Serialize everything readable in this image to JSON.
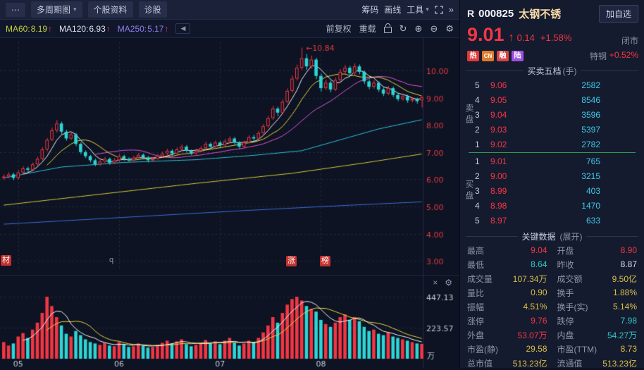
{
  "toolbar_top": {
    "more_icon": "⋯",
    "multi_period": "多周期图",
    "stock_info": "个股资料",
    "diagnose": "诊股",
    "chips": "筹码",
    "draw_line": "画线",
    "tools": "工具",
    "dropdown_icon": "▾",
    "collapse_icon": "»"
  },
  "toolbar_ma": {
    "ma60": {
      "label": "MA60:",
      "value": "8.19",
      "arrow": "↑"
    },
    "ma120": {
      "label": "MA120:",
      "value": "6.93",
      "arrow": "↑"
    },
    "ma250": {
      "label": "MA250:",
      "value": "5.17",
      "arrow": "↑"
    },
    "back_icon": "◀",
    "adjust_mode": "前复权",
    "reload": "重载",
    "refresh_icon": "↻",
    "zoom_in_icon": "⊕",
    "zoom_out_icon": "⊖",
    "gear_icon": "⚙"
  },
  "chart_markers": {
    "left_badge": "材",
    "gray_tag": "q",
    "rise_badge": "涨",
    "rank_badge": "榜"
  },
  "volume_pane": {
    "close_icon": "×",
    "gear_icon": "⚙"
  },
  "quote": {
    "flag": "R",
    "code": "000825",
    "name": "太钢不锈",
    "add_watchlist": "加自选",
    "price": "9.01",
    "arrow": "↑",
    "change": "0.14",
    "change_pct": "+1.58%",
    "market_status": "闭市",
    "badges": [
      {
        "text": "热",
        "style": "background:#e03a3a"
      },
      {
        "text": "CN",
        "style": "background:#e07b2a"
      },
      {
        "text": "融",
        "style": "background:#d84343"
      },
      {
        "text": "陆",
        "style": "background:#9e52e0"
      }
    ],
    "sector": {
      "label": "特钢",
      "value": "+0.52%"
    }
  },
  "order_book": {
    "title": "买卖五档",
    "unit": "(手)",
    "sell_label": "卖盘",
    "buy_label": "买盘",
    "sell": [
      {
        "level": "5",
        "price": "9.06",
        "volume": "2582"
      },
      {
        "level": "4",
        "price": "9.05",
        "volume": "8546"
      },
      {
        "level": "3",
        "price": "9.04",
        "volume": "3596"
      },
      {
        "level": "2",
        "price": "9.03",
        "volume": "5397"
      },
      {
        "level": "1",
        "price": "9.02",
        "volume": "2782"
      }
    ],
    "buy": [
      {
        "level": "1",
        "price": "9.01",
        "volume": "765"
      },
      {
        "level": "2",
        "price": "9.00",
        "volume": "3215"
      },
      {
        "level": "3",
        "price": "8.99",
        "volume": "403"
      },
      {
        "level": "4",
        "price": "8.98",
        "volume": "1470"
      },
      {
        "level": "5",
        "price": "8.97",
        "volume": "633"
      }
    ]
  },
  "key_data": {
    "title": "关键数据",
    "expand": "(展开)",
    "rows": [
      [
        {
          "label": "最高",
          "value": "9.04",
          "color": "up"
        },
        {
          "label": "开盘",
          "value": "8.90",
          "color": "up"
        }
      ],
      [
        {
          "label": "最低",
          "value": "8.64",
          "color": "down"
        },
        {
          "label": "昨收",
          "value": "8.87",
          "color": "flat"
        }
      ],
      [
        {
          "label": "成交量",
          "value": "107.34万",
          "color": "neutral"
        },
        {
          "label": "成交额",
          "value": "9.50亿",
          "color": "neutral"
        }
      ],
      [
        {
          "label": "量比",
          "value": "0.90",
          "color": "neutral"
        },
        {
          "label": "换手",
          "value": "1.88%",
          "color": "neutral"
        }
      ],
      [
        {
          "label": "振幅",
          "value": "4.51%",
          "color": "neutral"
        },
        {
          "label": "换手(实)",
          "value": "5.14%",
          "color": "neutral"
        }
      ],
      [
        {
          "label": "涨停",
          "value": "9.76",
          "color": "up"
        },
        {
          "label": "跌停",
          "value": "7.98",
          "color": "down"
        }
      ],
      [
        {
          "label": "外盘",
          "value": "53.07万",
          "color": "up"
        },
        {
          "label": "内盘",
          "value": "54.27万",
          "color": "down"
        }
      ],
      [
        {
          "label": "市盈(静)",
          "value": "29.58",
          "color": "neutral"
        },
        {
          "label": "市盈(TTM)",
          "value": "8.73",
          "color": "neutral"
        }
      ],
      [
        {
          "label": "总市值",
          "value": "513.23亿",
          "color": "neutral"
        },
        {
          "label": "流通值",
          "value": "513.23亿",
          "color": "neutral"
        }
      ]
    ]
  },
  "chart_data": {
    "type": "candlestick",
    "y_ticks": [
      10,
      9,
      8,
      7,
      6,
      5,
      4,
      3
    ],
    "x_labels": [
      "05",
      "06",
      "07",
      "08"
    ],
    "month_indices": [
      3,
      24,
      45,
      66
    ],
    "annotation": {
      "text": "←10.84",
      "index": 62,
      "price": 10.84
    },
    "volume_y_ticks": [
      "447.13",
      "223.57"
    ],
    "volume_unit": "万",
    "colors": {
      "up": "#f13644",
      "down": "#2ed5d5",
      "ma5": "#f5f5f5",
      "ma10": "#e9d63d",
      "ma20": "#e255d5",
      "grid": "#1f2842",
      "axis_text": "#e23a42",
      "text": "#c4cbdc"
    },
    "long_ma": {
      "ma60": {
        "color": "#30c2dd",
        "points": [
          [
            0,
            6.05
          ],
          [
            12,
            6.45
          ],
          [
            25,
            6.62
          ],
          [
            40,
            6.72
          ],
          [
            52,
            6.88
          ],
          [
            62,
            7.05
          ],
          [
            70,
            7.45
          ],
          [
            78,
            7.85
          ],
          [
            87,
            8.19
          ]
        ]
      },
      "ma120": {
        "color": "#d9cc3b",
        "points": [
          [
            0,
            5.05
          ],
          [
            20,
            5.45
          ],
          [
            40,
            5.85
          ],
          [
            60,
            6.22
          ],
          [
            75,
            6.6
          ],
          [
            87,
            6.93
          ]
        ]
      },
      "ma250": {
        "color": "#3e6fe0",
        "points": [
          [
            0,
            4.35
          ],
          [
            25,
            4.6
          ],
          [
            50,
            4.85
          ],
          [
            70,
            5.03
          ],
          [
            87,
            5.17
          ]
        ]
      }
    },
    "candles": [
      [
        6.05,
        6.18,
        5.98,
        6.1
      ],
      [
        6.1,
        6.26,
        6.04,
        6.18
      ],
      [
        6.18,
        6.24,
        5.97,
        6.05
      ],
      [
        6.05,
        6.33,
        5.99,
        6.25
      ],
      [
        6.25,
        6.48,
        6.19,
        6.4
      ],
      [
        6.4,
        6.47,
        6.27,
        6.35
      ],
      [
        6.35,
        6.62,
        6.3,
        6.55
      ],
      [
        6.55,
        6.83,
        6.5,
        6.75
      ],
      [
        6.75,
        7.18,
        6.7,
        7.1
      ],
      [
        7.1,
        7.52,
        7.03,
        7.45
      ],
      [
        7.45,
        7.9,
        7.4,
        7.8
      ],
      [
        7.8,
        8.18,
        7.72,
        8.05
      ],
      [
        8.05,
        8.12,
        7.66,
        7.75
      ],
      [
        7.75,
        7.82,
        7.42,
        7.5
      ],
      [
        7.5,
        7.74,
        7.45,
        7.65
      ],
      [
        7.65,
        7.7,
        7.22,
        7.3
      ],
      [
        7.3,
        7.36,
        6.92,
        7.0
      ],
      [
        7.0,
        7.06,
        6.78,
        6.85
      ],
      [
        6.85,
        6.9,
        6.62,
        6.7
      ],
      [
        6.7,
        6.76,
        6.48,
        6.55
      ],
      [
        6.55,
        6.72,
        6.49,
        6.65
      ],
      [
        6.65,
        6.82,
        6.6,
        6.75
      ],
      [
        6.75,
        6.8,
        6.53,
        6.6
      ],
      [
        6.6,
        6.78,
        6.55,
        6.7
      ],
      [
        6.7,
        6.92,
        6.64,
        6.85
      ],
      [
        6.85,
        6.9,
        6.68,
        6.75
      ],
      [
        6.75,
        6.81,
        6.63,
        6.7
      ],
      [
        6.7,
        6.87,
        6.65,
        6.8
      ],
      [
        6.8,
        6.97,
        6.74,
        6.9
      ],
      [
        6.9,
        6.95,
        6.73,
        6.8
      ],
      [
        6.8,
        6.86,
        6.62,
        6.7
      ],
      [
        6.7,
        6.82,
        6.64,
        6.75
      ],
      [
        6.75,
        6.93,
        6.7,
        6.85
      ],
      [
        6.85,
        7.02,
        6.8,
        6.95
      ],
      [
        6.95,
        7.12,
        6.89,
        7.05
      ],
      [
        7.05,
        7.1,
        6.87,
        6.95
      ],
      [
        6.95,
        7.17,
        6.9,
        7.1
      ],
      [
        7.1,
        7.28,
        7.04,
        7.2
      ],
      [
        7.2,
        7.26,
        6.98,
        7.05
      ],
      [
        7.05,
        7.1,
        6.88,
        6.95
      ],
      [
        6.95,
        7.13,
        6.9,
        7.05
      ],
      [
        7.05,
        7.22,
        6.99,
        7.15
      ],
      [
        7.15,
        7.38,
        7.1,
        7.3
      ],
      [
        7.3,
        7.36,
        7.12,
        7.2
      ],
      [
        7.2,
        7.42,
        7.14,
        7.35
      ],
      [
        7.35,
        7.41,
        7.17,
        7.25
      ],
      [
        7.25,
        7.48,
        7.2,
        7.4
      ],
      [
        7.4,
        7.58,
        7.33,
        7.5
      ],
      [
        7.5,
        7.56,
        7.27,
        7.35
      ],
      [
        7.35,
        7.41,
        7.12,
        7.2
      ],
      [
        7.2,
        7.42,
        7.14,
        7.35
      ],
      [
        7.35,
        7.62,
        7.3,
        7.55
      ],
      [
        7.55,
        7.64,
        7.42,
        7.5
      ],
      [
        7.5,
        7.78,
        7.45,
        7.7
      ],
      [
        7.7,
        8.03,
        7.64,
        7.95
      ],
      [
        7.95,
        8.33,
        7.9,
        8.25
      ],
      [
        8.25,
        8.7,
        8.19,
        8.6
      ],
      [
        8.6,
        8.67,
        8.32,
        8.45
      ],
      [
        8.45,
        8.94,
        8.4,
        8.85
      ],
      [
        8.85,
        9.34,
        8.79,
        9.25
      ],
      [
        9.25,
        9.81,
        9.19,
        9.7
      ],
      [
        9.7,
        10.22,
        9.63,
        10.1
      ],
      [
        10.1,
        10.84,
        10.02,
        10.45
      ],
      [
        10.45,
        10.6,
        10.02,
        10.15
      ],
      [
        10.15,
        10.55,
        10.06,
        10.4
      ],
      [
        10.4,
        10.47,
        9.68,
        9.8
      ],
      [
        9.8,
        9.88,
        9.22,
        9.35
      ],
      [
        9.35,
        9.66,
        9.28,
        9.55
      ],
      [
        9.55,
        9.62,
        9.2,
        9.3
      ],
      [
        9.3,
        9.74,
        9.24,
        9.65
      ],
      [
        9.65,
        10.05,
        9.58,
        9.95
      ],
      [
        9.95,
        10.2,
        9.88,
        10.1
      ],
      [
        10.1,
        10.17,
        9.8,
        9.9
      ],
      [
        9.9,
        10.26,
        9.84,
        10.15
      ],
      [
        10.15,
        10.22,
        9.86,
        9.95
      ],
      [
        9.95,
        10.0,
        9.5,
        9.6
      ],
      [
        9.6,
        9.67,
        9.31,
        9.4
      ],
      [
        9.4,
        9.64,
        9.33,
        9.55
      ],
      [
        9.55,
        9.6,
        9.21,
        9.3
      ],
      [
        9.3,
        9.37,
        9.06,
        9.15
      ],
      [
        9.15,
        9.43,
        9.09,
        9.35
      ],
      [
        9.35,
        9.41,
        9.02,
        9.1
      ],
      [
        9.1,
        9.16,
        8.87,
        8.95
      ],
      [
        8.95,
        9.13,
        8.89,
        9.05
      ],
      [
        9.05,
        9.11,
        8.81,
        8.9
      ],
      [
        8.9,
        9.02,
        8.83,
        8.95
      ],
      [
        8.95,
        9.0,
        8.78,
        8.87
      ],
      [
        8.9,
        9.04,
        8.64,
        9.01
      ]
    ],
    "volumes": [
      120,
      95,
      110,
      160,
      185,
      150,
      210,
      260,
      330,
      447,
      380,
      300,
      240,
      180,
      160,
      200,
      170,
      140,
      120,
      110,
      100,
      115,
      95,
      90,
      120,
      105,
      85,
      90,
      110,
      95,
      80,
      85,
      100,
      115,
      130,
      110,
      125,
      140,
      105,
      90,
      100,
      115,
      135,
      110,
      125,
      105,
      130,
      150,
      115,
      95,
      110,
      130,
      120,
      150,
      190,
      240,
      300,
      260,
      330,
      390,
      430,
      447,
      420,
      380,
      360,
      340,
      280,
      250,
      230,
      260,
      300,
      320,
      280,
      300,
      270,
      230,
      200,
      210,
      180,
      170,
      190,
      160,
      150,
      140,
      130,
      120,
      110,
      107
    ]
  }
}
